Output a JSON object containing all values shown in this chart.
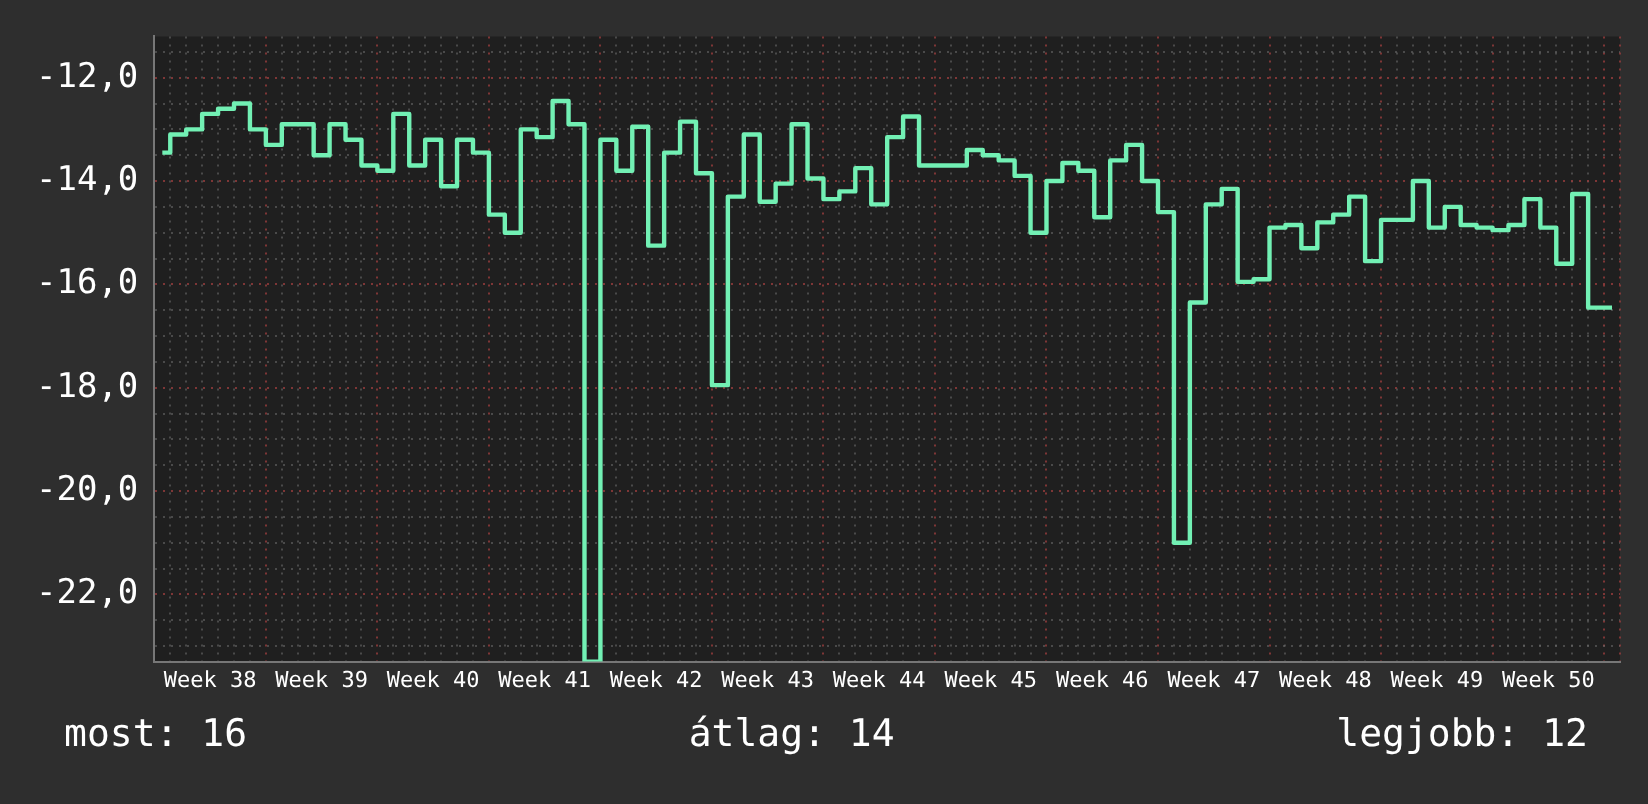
{
  "chart_data": {
    "type": "step",
    "categories": [
      null,
      null,
      null,
      "Week 38",
      null,
      null,
      null,
      null,
      null,
      null,
      "Week 39",
      null,
      null,
      null,
      null,
      null,
      null,
      "Week 40",
      null,
      null,
      null,
      null,
      null,
      null,
      "Week 41",
      null,
      null,
      null,
      null,
      null,
      null,
      "Week 42",
      null,
      null,
      null,
      null,
      null,
      null,
      "Week 43",
      null,
      null,
      null,
      null,
      null,
      null,
      "Week 44",
      null,
      null,
      null,
      null,
      null,
      null,
      "Week 45",
      null,
      null,
      null,
      null,
      null,
      null,
      "Week 46",
      null,
      null,
      null,
      null,
      null,
      null,
      "Week 47",
      null,
      null,
      null,
      null,
      null,
      null,
      "Week 48",
      null,
      null,
      null,
      null,
      null,
      null,
      "Week 49",
      null,
      null,
      null,
      null,
      null,
      null,
      "Week 50",
      null,
      null,
      null,
      null
    ],
    "series": [
      {
        "color": "#72f0b4",
        "values": [
          -13.45,
          -13.1,
          -13.0,
          -12.7,
          -12.6,
          -12.5,
          -13.0,
          -13.3,
          -12.9,
          -12.9,
          -13.5,
          -12.9,
          -13.2,
          -13.7,
          -13.8,
          -12.7,
          -13.7,
          -13.2,
          -14.1,
          -13.2,
          -13.45,
          -14.65,
          -15.0,
          -13.0,
          -13.15,
          -12.45,
          -12.9,
          -23.3,
          -13.2,
          -13.8,
          -12.95,
          -15.25,
          -13.45,
          -12.85,
          -13.85,
          -17.95,
          -14.3,
          -13.1,
          -14.4,
          -14.05,
          -12.9,
          -13.95,
          -14.35,
          -14.2,
          -13.75,
          -14.45,
          -13.15,
          -12.75,
          -13.7,
          -13.7,
          -13.7,
          -13.4,
          -13.5,
          -13.6,
          -13.9,
          -15.0,
          -14.0,
          -13.65,
          -13.8,
          -14.7,
          -13.6,
          -13.3,
          -14.0,
          -14.6,
          -21.0,
          -16.35,
          -14.45,
          -14.15,
          -15.95,
          -15.9,
          -14.9,
          -14.85,
          -15.3,
          -14.8,
          -14.65,
          -14.3,
          -15.55,
          -14.75,
          -14.75,
          -14.0,
          -14.9,
          -14.5,
          -14.85,
          -14.9,
          -14.95,
          -14.85,
          -14.35,
          -14.9,
          -15.6,
          -14.25,
          -16.45,
          -16.45
        ]
      }
    ],
    "ylim": [
      -23.3,
      -11.2
    ],
    "yticks": [
      {
        "value": -23,
        "label": null
      },
      {
        "value": -22.5,
        "label": null
      },
      {
        "value": -22,
        "label": "-22,0"
      },
      {
        "value": -21.5,
        "label": null
      },
      {
        "value": -21,
        "label": null
      },
      {
        "value": -20.5,
        "label": null
      },
      {
        "value": -20,
        "label": "-20,0"
      },
      {
        "value": -19.5,
        "label": null
      },
      {
        "value": -19,
        "label": null
      },
      {
        "value": -18.5,
        "label": null
      },
      {
        "value": -18,
        "label": "-18,0"
      },
      {
        "value": -17.5,
        "label": null
      },
      {
        "value": -17,
        "label": null
      },
      {
        "value": -16.5,
        "label": null
      },
      {
        "value": -16,
        "label": "-16,0"
      },
      {
        "value": -15.5,
        "label": null
      },
      {
        "value": -15,
        "label": null
      },
      {
        "value": -14.5,
        "label": null
      },
      {
        "value": -14,
        "label": "-14,0"
      },
      {
        "value": -13.5,
        "label": null
      },
      {
        "value": -13,
        "label": null
      },
      {
        "value": -12.5,
        "label": null
      },
      {
        "value": -12,
        "label": "-12,0"
      },
      {
        "value": -11.5,
        "label": null
      }
    ],
    "grid": true,
    "annotations": [
      "most: 16",
      "átlag: 14",
      "legjobb: 12"
    ]
  }
}
